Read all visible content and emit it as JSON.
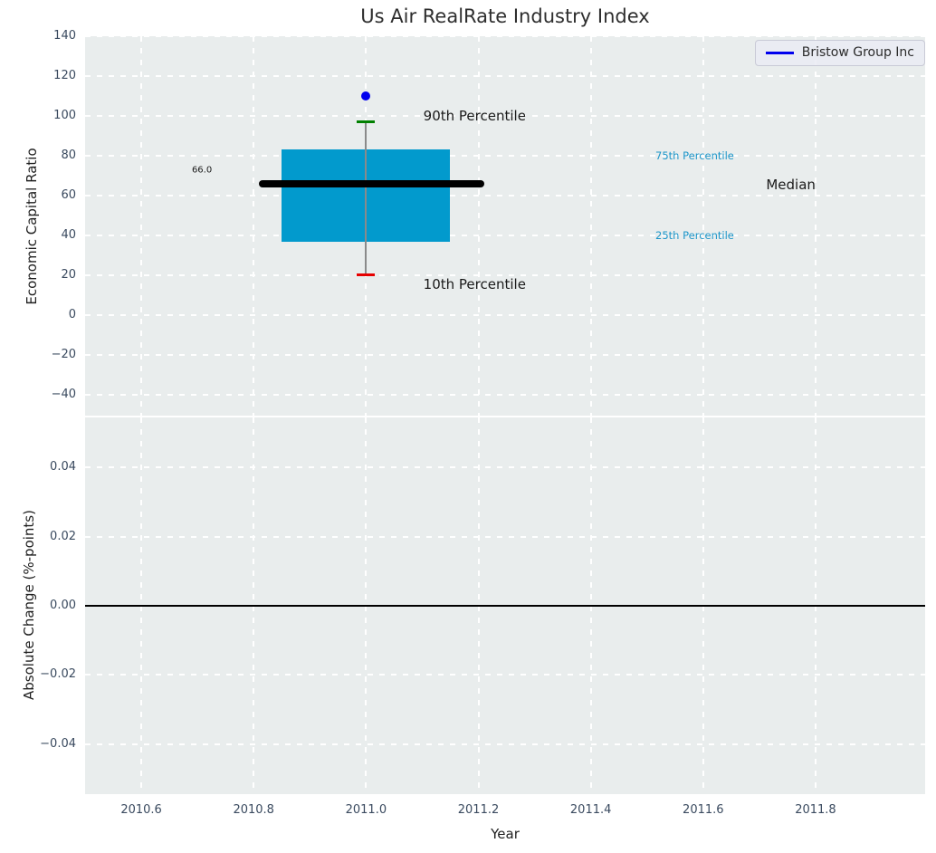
{
  "title": "Us Air RealRate Industry Index",
  "legend": {
    "label": "Bristow Group Inc",
    "line_color": "#0000ee"
  },
  "colors": {
    "axes_bg": "#e9eded",
    "grid": "#ffffff",
    "tick_label": "#3a4a5f",
    "text": "#1f1f1f"
  },
  "chart_data": [
    {
      "type": "box",
      "title": "Us Air RealRate Industry Index",
      "xlabel": "Year",
      "ylabel": "Economic Capital Ratio",
      "xlim": [
        2010.5,
        2011.995
      ],
      "ylim": [
        -50.5,
        140
      ],
      "yticks": [
        140,
        120,
        100,
        80,
        60,
        40,
        20,
        0,
        -20,
        -40
      ],
      "ytick_labels": [
        "140",
        "120",
        "100",
        "80",
        "60",
        "40",
        "20",
        "0",
        "−20",
        "−40"
      ],
      "xticks": [
        2010.6,
        2010.8,
        2011.0,
        2011.2,
        2011.4,
        2011.6,
        2011.8
      ],
      "xtick_labels": [
        "2010.6",
        "2010.8",
        "2011.0",
        "2011.2",
        "2011.4",
        "2011.6",
        "2011.8"
      ],
      "grid": true,
      "legend_position": "upper right",
      "box": {
        "x": 2011.0,
        "x_left": 2010.85,
        "x_right": 2011.15,
        "p10": 20,
        "p25": 37,
        "median": 66,
        "p75": 83,
        "p90": 97,
        "median_x_left": 2010.81,
        "median_x_right": 2011.21,
        "box_color": "#029acd",
        "median_color": "#000000",
        "whisker_color": "#8a8a8a",
        "p90_cap_color": "#008000",
        "p10_cap_color": "#e60000"
      },
      "points": [
        {
          "name": "Bristow Group Inc",
          "x": 2011.0,
          "y": 110,
          "color": "#0000ee"
        }
      ],
      "annotations": [
        {
          "text": "90th Percentile",
          "x": 2011.102,
          "y": 100,
          "color": "#1a1a1a",
          "size": 15
        },
        {
          "text": "10th Percentile",
          "x": 2011.102,
          "y": 15.5,
          "color": "#1a1a1a",
          "size": 15
        },
        {
          "text": "75th Percentile",
          "x": 2011.515,
          "y": 80,
          "color": "#1d96c9",
          "size": 11.5
        },
        {
          "text": "25th Percentile",
          "x": 2011.515,
          "y": 40,
          "color": "#1d96c9",
          "size": 11.5
        },
        {
          "text": "Median",
          "x": 2011.712,
          "y": 65.5,
          "color": "#1a1a1a",
          "size": 15
        },
        {
          "text": "66.0",
          "x": 2010.69,
          "y": 72.5,
          "color": "#1a1a1a",
          "size": 10
        }
      ]
    },
    {
      "type": "line",
      "ylabel": "Absolute Change (%-points)",
      "ylim": [
        -0.0545,
        0.0545
      ],
      "yticks": [
        0.04,
        0.02,
        0.0,
        -0.02,
        -0.04
      ],
      "ytick_labels": [
        "0.04",
        "0.02",
        "0.00",
        "−0.02",
        "−0.04"
      ],
      "grid": true,
      "zero_line": {
        "y": 0,
        "color": "#000000"
      },
      "series": []
    }
  ]
}
